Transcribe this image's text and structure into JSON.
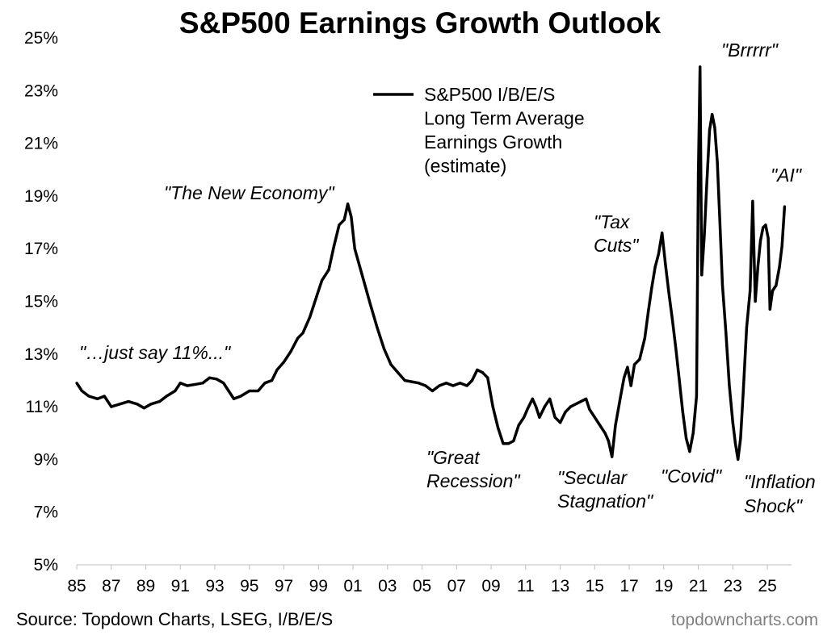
{
  "chart_data": {
    "type": "line",
    "title": "S&P500 Earnings Growth Outlook",
    "xlabel": "",
    "ylabel": "",
    "xlim": [
      1985,
      2026.4
    ],
    "ylim": [
      5,
      25
    ],
    "y_ticks": [
      "5%",
      "7%",
      "9%",
      "11%",
      "13%",
      "15%",
      "17%",
      "19%",
      "21%",
      "23%",
      "25%"
    ],
    "x_ticks": [
      "85",
      "87",
      "89",
      "91",
      "93",
      "95",
      "97",
      "99",
      "01",
      "03",
      "05",
      "07",
      "09",
      "11",
      "13",
      "15",
      "17",
      "19",
      "21",
      "23",
      "25"
    ],
    "legend": {
      "position": "top-center",
      "label_lines": [
        "S&P500 I/B/E/S",
        "Long Term Average",
        "Earnings Growth",
        "(estimate)"
      ]
    },
    "series": [
      {
        "name": "S&P500 I/B/E/S Long Term Average Earnings Growth (estimate)",
        "color": "#000000",
        "points": [
          [
            1985.0,
            11.9
          ],
          [
            1985.3,
            11.6
          ],
          [
            1985.7,
            11.4
          ],
          [
            1986.2,
            11.3
          ],
          [
            1986.6,
            11.4
          ],
          [
            1987.0,
            11.0
          ],
          [
            1987.5,
            11.1
          ],
          [
            1988.0,
            11.2
          ],
          [
            1988.5,
            11.1
          ],
          [
            1988.9,
            10.95
          ],
          [
            1989.3,
            11.1
          ],
          [
            1989.8,
            11.2
          ],
          [
            1990.2,
            11.4
          ],
          [
            1990.7,
            11.6
          ],
          [
            1991.0,
            11.9
          ],
          [
            1991.4,
            11.8
          ],
          [
            1991.9,
            11.85
          ],
          [
            1992.3,
            11.9
          ],
          [
            1992.7,
            12.1
          ],
          [
            1993.1,
            12.05
          ],
          [
            1993.5,
            11.9
          ],
          [
            1993.8,
            11.6
          ],
          [
            1994.1,
            11.3
          ],
          [
            1994.5,
            11.4
          ],
          [
            1995.0,
            11.6
          ],
          [
            1995.5,
            11.6
          ],
          [
            1995.9,
            11.9
          ],
          [
            1996.3,
            12.0
          ],
          [
            1996.6,
            12.4
          ],
          [
            1997.0,
            12.7
          ],
          [
            1997.4,
            13.1
          ],
          [
            1997.8,
            13.6
          ],
          [
            1998.1,
            13.8
          ],
          [
            1998.5,
            14.4
          ],
          [
            1998.9,
            15.2
          ],
          [
            1999.2,
            15.8
          ],
          [
            1999.6,
            16.2
          ],
          [
            1999.9,
            17.1
          ],
          [
            2000.2,
            17.9
          ],
          [
            2000.5,
            18.1
          ],
          [
            2000.7,
            18.7
          ],
          [
            2000.9,
            18.2
          ],
          [
            2001.1,
            17.0
          ],
          [
            2001.4,
            16.3
          ],
          [
            2001.7,
            15.6
          ],
          [
            2002.0,
            14.9
          ],
          [
            2002.4,
            14.0
          ],
          [
            2002.8,
            13.2
          ],
          [
            2003.2,
            12.6
          ],
          [
            2003.6,
            12.3
          ],
          [
            2004.0,
            12.0
          ],
          [
            2004.4,
            11.95
          ],
          [
            2004.8,
            11.9
          ],
          [
            2005.2,
            11.8
          ],
          [
            2005.6,
            11.6
          ],
          [
            2006.0,
            11.8
          ],
          [
            2006.4,
            11.9
          ],
          [
            2006.8,
            11.8
          ],
          [
            2007.2,
            11.9
          ],
          [
            2007.6,
            11.8
          ],
          [
            2007.9,
            12.0
          ],
          [
            2008.2,
            12.4
          ],
          [
            2008.5,
            12.3
          ],
          [
            2008.8,
            12.1
          ],
          [
            2009.1,
            11.0
          ],
          [
            2009.4,
            10.2
          ],
          [
            2009.7,
            9.6
          ],
          [
            2010.0,
            9.6
          ],
          [
            2010.3,
            9.7
          ],
          [
            2010.6,
            10.3
          ],
          [
            2010.9,
            10.6
          ],
          [
            2011.1,
            10.9
          ],
          [
            2011.4,
            11.3
          ],
          [
            2011.6,
            11.0
          ],
          [
            2011.8,
            10.6
          ],
          [
            2012.1,
            11.0
          ],
          [
            2012.4,
            11.3
          ],
          [
            2012.7,
            10.6
          ],
          [
            2013.0,
            10.4
          ],
          [
            2013.3,
            10.8
          ],
          [
            2013.6,
            11.0
          ],
          [
            2013.9,
            11.1
          ],
          [
            2014.2,
            11.2
          ],
          [
            2014.5,
            11.3
          ],
          [
            2014.7,
            10.9
          ],
          [
            2015.0,
            10.6
          ],
          [
            2015.3,
            10.3
          ],
          [
            2015.6,
            10.0
          ],
          [
            2015.8,
            9.7
          ],
          [
            2016.0,
            9.1
          ],
          [
            2016.2,
            10.3
          ],
          [
            2016.5,
            11.4
          ],
          [
            2016.7,
            12.1
          ],
          [
            2016.9,
            12.5
          ],
          [
            2017.1,
            11.8
          ],
          [
            2017.3,
            12.6
          ],
          [
            2017.6,
            12.8
          ],
          [
            2017.9,
            13.6
          ],
          [
            2018.1,
            14.6
          ],
          [
            2018.3,
            15.5
          ],
          [
            2018.5,
            16.3
          ],
          [
            2018.7,
            16.8
          ],
          [
            2018.9,
            17.6
          ],
          [
            2019.1,
            16.4
          ],
          [
            2019.3,
            15.3
          ],
          [
            2019.5,
            14.3
          ],
          [
            2019.7,
            13.2
          ],
          [
            2019.9,
            12.0
          ],
          [
            2020.1,
            10.8
          ],
          [
            2020.3,
            9.8
          ],
          [
            2020.5,
            9.3
          ],
          [
            2020.7,
            10.0
          ],
          [
            2020.9,
            11.4
          ],
          [
            2021.0,
            19.8
          ],
          [
            2021.1,
            23.9
          ],
          [
            2021.2,
            16.0
          ],
          [
            2021.35,
            17.5
          ],
          [
            2021.5,
            19.6
          ],
          [
            2021.65,
            21.5
          ],
          [
            2021.8,
            22.1
          ],
          [
            2021.95,
            21.6
          ],
          [
            2022.1,
            20.3
          ],
          [
            2022.25,
            18.0
          ],
          [
            2022.4,
            15.6
          ],
          [
            2022.6,
            13.8
          ],
          [
            2022.8,
            11.8
          ],
          [
            2023.0,
            10.4
          ],
          [
            2023.15,
            9.6
          ],
          [
            2023.3,
            9.0
          ],
          [
            2023.45,
            9.8
          ],
          [
            2023.6,
            11.5
          ],
          [
            2023.8,
            14.0
          ],
          [
            2024.0,
            15.4
          ],
          [
            2024.15,
            18.8
          ],
          [
            2024.3,
            15.0
          ],
          [
            2024.45,
            16.3
          ],
          [
            2024.6,
            17.3
          ],
          [
            2024.75,
            17.8
          ],
          [
            2024.9,
            17.9
          ],
          [
            2025.05,
            17.4
          ],
          [
            2025.15,
            14.7
          ],
          [
            2025.3,
            15.4
          ],
          [
            2025.5,
            15.6
          ],
          [
            2025.7,
            16.3
          ],
          [
            2025.85,
            17.1
          ],
          [
            2026.0,
            18.6
          ]
        ]
      }
    ],
    "annotations": [
      {
        "text": "\"…just say 11%...\""
      },
      {
        "text": "\"The New Economy\""
      },
      {
        "text": "\"Great"
      },
      {
        "text": "Recession\""
      },
      {
        "text": "\"Secular"
      },
      {
        "text": "Stagnation\""
      },
      {
        "text": "\"Tax"
      },
      {
        "text": "Cuts\""
      },
      {
        "text": "\"Covid\""
      },
      {
        "text": "\"Brrrrr\""
      },
      {
        "text": "\"Inflation"
      },
      {
        "text": "Shock\""
      },
      {
        "text": "\"AI\""
      }
    ]
  },
  "footer": {
    "source": "Source: Topdown Charts, LSEG, I/B/E/S",
    "watermark": "topdowncharts.com"
  }
}
